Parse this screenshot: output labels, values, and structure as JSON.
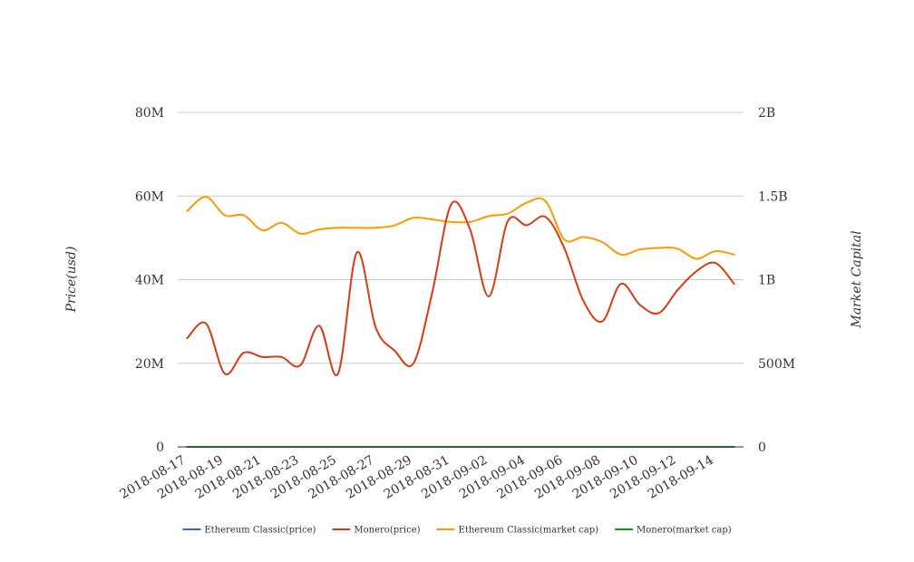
{
  "chart_data": {
    "type": "line",
    "title": "",
    "ylabel": "Price(usd)",
    "y2label": "Market Capital",
    "ylim": [
      0,
      80000000
    ],
    "y2lim": [
      0,
      2000000000
    ],
    "y_ticks": [
      "0",
      "20M",
      "40M",
      "60M",
      "80M"
    ],
    "y2_ticks": [
      "0",
      "500M",
      "1B",
      "1.5B",
      "2B"
    ],
    "x": [
      "2018-08-17",
      "2018-08-18",
      "2018-08-19",
      "2018-08-20",
      "2018-08-21",
      "2018-08-22",
      "2018-08-23",
      "2018-08-24",
      "2018-08-25",
      "2018-08-26",
      "2018-08-27",
      "2018-08-28",
      "2018-08-29",
      "2018-08-30",
      "2018-08-31",
      "2018-09-01",
      "2018-09-02",
      "2018-09-03",
      "2018-09-04",
      "2018-09-05",
      "2018-09-06",
      "2018-09-07",
      "2018-09-08",
      "2018-09-09",
      "2018-09-10",
      "2018-09-11",
      "2018-09-12",
      "2018-09-13",
      "2018-09-14",
      "2018-09-15"
    ],
    "x_tick_labels": [
      "2018-08-17",
      "2018-08-19",
      "2018-08-21",
      "2018-08-23",
      "2018-08-25",
      "2018-08-27",
      "2018-08-29",
      "2018-08-31",
      "2018-09-02",
      "2018-09-04",
      "2018-09-06",
      "2018-09-08",
      "2018-09-10",
      "2018-09-12",
      "2018-09-14"
    ],
    "grid": true,
    "legend_position": "bottom",
    "series": [
      {
        "name": "Ethereum Classic(price)",
        "color": "#3366cc",
        "axis": "left",
        "values": [
          15,
          15,
          15,
          15,
          15,
          14,
          14,
          14,
          14,
          14,
          14,
          14,
          14,
          14,
          14,
          14,
          15,
          15,
          15,
          15,
          15,
          14,
          14,
          14,
          14,
          14,
          14,
          14,
          14,
          14
        ]
      },
      {
        "name": "Monero(price)",
        "color": "#dc3912",
        "axis": "left",
        "values": [
          26000000,
          29500000,
          17500000,
          22500000,
          21500000,
          21500000,
          19500000,
          29000000,
          17500000,
          46500000,
          28500000,
          23000000,
          20000000,
          37000000,
          58000000,
          52000000,
          36000000,
          54000000,
          53000000,
          55000000,
          47500000,
          35000000,
          30000000,
          39000000,
          34000000,
          32000000,
          37500000,
          42000000,
          44000000,
          39000000
        ]
      },
      {
        "name": "Ethereum Classic(market cap)",
        "color": "#ff9900",
        "axis": "right",
        "values": [
          1410000000,
          1495000000,
          1385000000,
          1385000000,
          1295000000,
          1340000000,
          1275000000,
          1300000000,
          1310000000,
          1310000000,
          1310000000,
          1325000000,
          1370000000,
          1360000000,
          1345000000,
          1345000000,
          1380000000,
          1395000000,
          1460000000,
          1470000000,
          1240000000,
          1255000000,
          1225000000,
          1150000000,
          1180000000,
          1190000000,
          1185000000,
          1125000000,
          1170000000,
          1150000000
        ]
      },
      {
        "name": "Monero(market cap)",
        "color": "#109618",
        "axis": "right",
        "values": [
          100,
          100,
          100,
          100,
          100,
          100,
          100,
          100,
          100,
          100,
          100,
          100,
          100,
          100,
          100,
          100,
          100,
          100,
          100,
          100,
          100,
          100,
          100,
          100,
          100,
          100,
          100,
          100,
          100,
          100
        ]
      }
    ]
  }
}
